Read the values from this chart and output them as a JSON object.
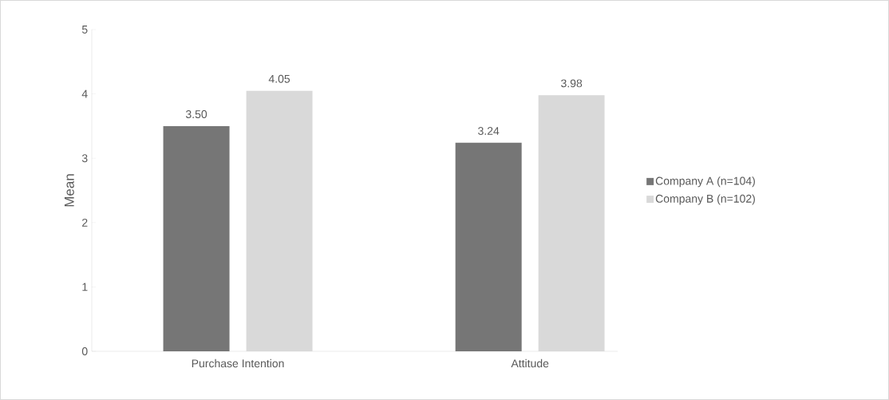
{
  "chart_data": {
    "type": "bar",
    "ylabel": "Mean",
    "categories": [
      "Purchase Intention",
      "Attitude"
    ],
    "series": [
      {
        "name": "Company A (n=104)",
        "color": "#767676",
        "values": [
          3.5,
          3.24
        ],
        "value_labels": [
          "3.50",
          "3.24"
        ]
      },
      {
        "name": "Company B (n=102)",
        "color": "#d9d9d9",
        "values": [
          4.05,
          3.98
        ],
        "value_labels": [
          "4.05",
          "3.98"
        ]
      }
    ],
    "ylim": [
      0,
      5
    ],
    "yticks": [
      0,
      1,
      2,
      3,
      4,
      5
    ],
    "grid": false,
    "legend": "right"
  }
}
